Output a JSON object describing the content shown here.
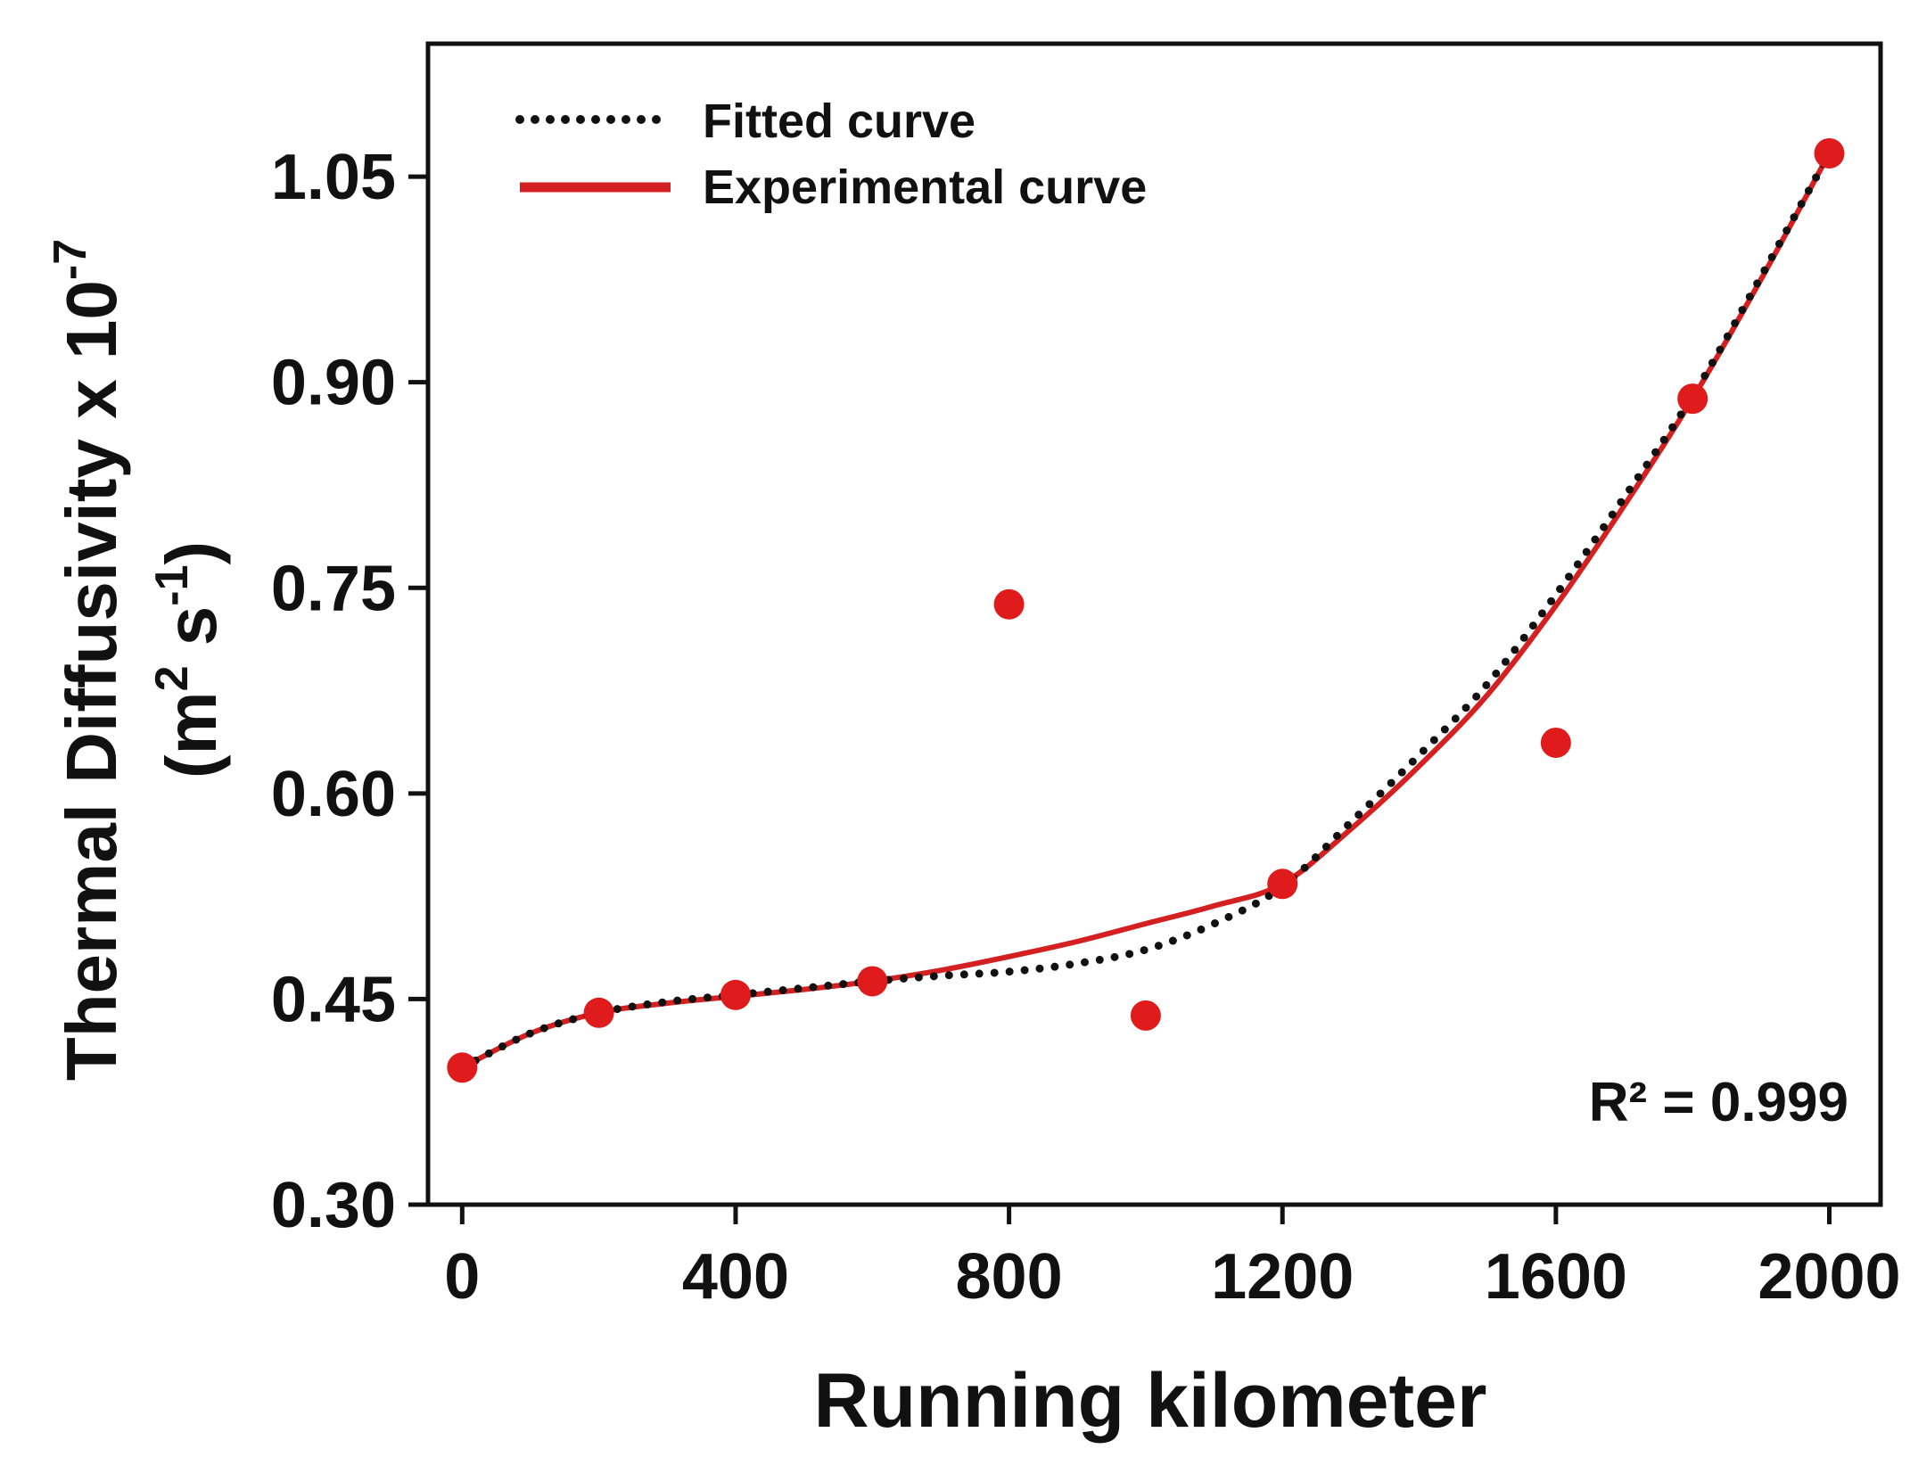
{
  "chart_data": {
    "type": "scatter",
    "xlabel": "Running kilometer",
    "ylabel": {
      "line1_prefix": "Thermal Diffusivity x 10",
      "line1_exp": "-7",
      "line2_open": "(m",
      "line2_exp1": "2",
      "line2_mid": " s",
      "line2_exp2": "-1",
      "line2_close": ")"
    },
    "xlim": [
      -50,
      2075
    ],
    "ylim": [
      0.3,
      1.147
    ],
    "x_ticks": [
      0,
      400,
      800,
      1200,
      1600,
      2000
    ],
    "x_tick_labels": [
      "0",
      "400",
      "800",
      "1200",
      "1600",
      "2000"
    ],
    "y_ticks": [
      0.3,
      0.45,
      0.6,
      0.75,
      0.9,
      1.05
    ],
    "y_tick_labels": [
      "0.30",
      "0.45",
      "0.60",
      "0.75",
      "0.90",
      "1.05"
    ],
    "series": [
      {
        "name": "Experimental points",
        "kind": "points",
        "color": "#e01b1b",
        "x": [
          0,
          200,
          400,
          600,
          800,
          1000,
          1200,
          1600,
          1800,
          2000
        ],
        "y": [
          0.4,
          0.44,
          0.453,
          0.463,
          0.738,
          0.438,
          0.534,
          0.637,
          0.888,
          1.067
        ]
      },
      {
        "name": "Experimental curve",
        "kind": "line",
        "color": "#d42020",
        "x": [
          0,
          100,
          200,
          300,
          400,
          500,
          600,
          700,
          800,
          900,
          1000,
          1100,
          1200,
          1300,
          1400,
          1500,
          1600,
          1700,
          1800,
          1900,
          2000
        ],
        "y": [
          0.4,
          0.425,
          0.44,
          0.447,
          0.452,
          0.457,
          0.463,
          0.471,
          0.481,
          0.492,
          0.505,
          0.518,
          0.534,
          0.574,
          0.62,
          0.672,
          0.737,
          0.81,
          0.888,
          0.975,
          1.067
        ]
      },
      {
        "name": "Fitted curve",
        "kind": "dotted",
        "color": "#111111",
        "x": [
          0,
          100,
          200,
          300,
          400,
          500,
          600,
          700,
          800,
          900,
          1000,
          1100,
          1200,
          1300,
          1400,
          1500,
          1600,
          1700,
          1800,
          1900,
          2000
        ],
        "y": [
          0.4,
          0.425,
          0.44,
          0.448,
          0.453,
          0.458,
          0.463,
          0.467,
          0.47,
          0.476,
          0.486,
          0.505,
          0.532,
          0.579,
          0.628,
          0.68,
          0.745,
          0.816,
          0.89,
          0.977,
          1.067
        ]
      }
    ],
    "legend": {
      "position": "top-left",
      "entries": [
        {
          "label": "Fitted curve",
          "style": "dotted",
          "color": "#111111"
        },
        {
          "label": "Experimental curve",
          "style": "solid",
          "color": "#d42020"
        }
      ]
    },
    "annotations": {
      "r_squared": "R² = 0.999"
    }
  }
}
